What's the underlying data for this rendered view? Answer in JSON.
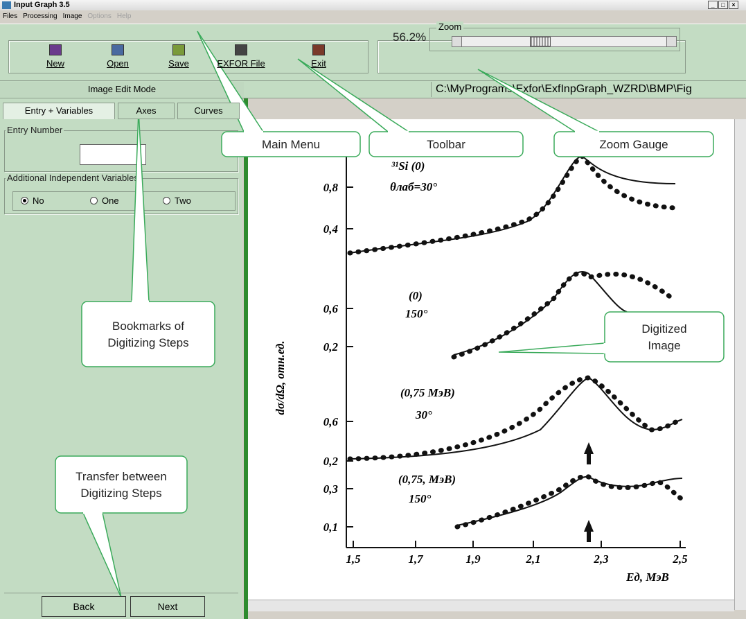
{
  "window": {
    "title": "Input Graph 3.5"
  },
  "menu": {
    "items": [
      "Files",
      "Processing",
      "Image",
      "Options",
      "Help"
    ],
    "disabled": [
      "Options",
      "Help"
    ]
  },
  "toolbar": {
    "buttons": [
      "New",
      "Open",
      "Save",
      "EXFOR File",
      "Exit"
    ],
    "zoom_value": "56.2%",
    "zoom_label": "Zoom"
  },
  "mode": "Image Edit Mode",
  "file_path": "C:\\MyPrograms\\Exfor\\ExfInpGraph_WZRD\\BMP\\Fig",
  "tabs": {
    "items": [
      "Entry + Variables",
      "Axes",
      "Curves"
    ],
    "active": "Entry + Variables"
  },
  "entry_number": {
    "label": "Entry Number"
  },
  "additional_variables": {
    "label": "Additional Independent Variables",
    "options": [
      "No",
      "One",
      "Two"
    ],
    "selected": "No"
  },
  "nav_buttons": [
    "Back",
    "Next"
  ],
  "scan": {
    "y_labels": [
      "0,8",
      "0,4",
      "0,6",
      "0,2",
      "0,6",
      "0,2",
      "0,3",
      "0,1"
    ],
    "x_labels": [
      "1,5",
      "1,7",
      "1,9",
      "2,1",
      "2,3",
      "2,5"
    ],
    "x_axis_label": "Eд, МэВ",
    "y_axis_label": "dσ/dΩ, отн.ед.",
    "panel_labels": [
      "³¹Si (0)",
      "θлаб=30°",
      "(0)",
      "150°",
      "(0,75 МэВ)",
      "30°",
      "(0,75, МэВ)",
      "150°"
    ]
  },
  "callouts": [
    {
      "lines": [
        "Main Menu"
      ]
    },
    {
      "lines": [
        "Toolbar"
      ]
    },
    {
      "lines": [
        "Zoom Gauge"
      ]
    },
    {
      "lines": [
        "Bookmarks of",
        "Digitizing Steps"
      ]
    },
    {
      "lines": [
        "Digitized",
        "Image"
      ]
    },
    {
      "lines": [
        "Transfer between",
        "Digitizing Steps"
      ]
    }
  ]
}
